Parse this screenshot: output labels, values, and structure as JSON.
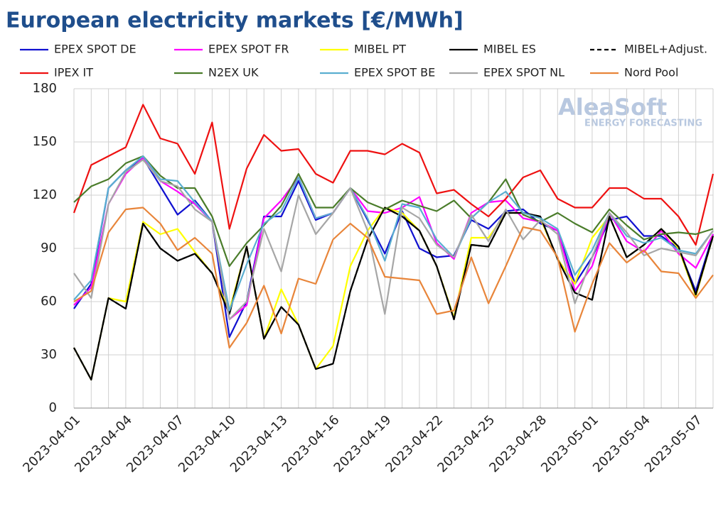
{
  "chart_data": {
    "type": "line",
    "title": "European electricity markets [€/MWh]",
    "watermark": {
      "brand": "AleaSoft",
      "tagline": "ENERGY FORECASTING"
    },
    "categories": [
      "2023-04-01",
      null,
      null,
      "2023-04-04",
      null,
      null,
      "2023-04-07",
      null,
      null,
      "2023-04-10",
      null,
      null,
      "2023-04-13",
      null,
      null,
      "2023-04-16",
      null,
      null,
      "2023-04-19",
      null,
      null,
      "2023-04-22",
      null,
      null,
      "2023-04-25",
      null,
      null,
      "2023-04-28",
      null,
      null,
      "2023-05-01",
      null,
      null,
      "2023-05-04",
      null,
      null,
      "2023-05-07",
      null
    ],
    "ylim": [
      0,
      180
    ],
    "yticks": [
      0,
      30,
      60,
      90,
      120,
      150,
      180
    ],
    "grid": true,
    "series": [
      {
        "name": "EPEX SPOT DE",
        "color": "#1010d0",
        "values": [
          56,
          70,
          124,
          134,
          141,
          125,
          109,
          117,
          105,
          40,
          60,
          108,
          108,
          128,
          106,
          110,
          124,
          106,
          87,
          111,
          90,
          85,
          86,
          106,
          101,
          111,
          112,
          104,
          100,
          70,
          85,
          106,
          108,
          97,
          97,
          90,
          66,
          98
        ]
      },
      {
        "name": "EPEX SPOT FR",
        "color": "#ff00ff",
        "values": [
          58,
          68,
          115,
          132,
          141,
          128,
          122,
          115,
          105,
          50,
          58,
          107,
          117,
          130,
          107,
          110,
          124,
          111,
          110,
          113,
          119,
          93,
          84,
          110,
          116,
          117,
          107,
          105,
          100,
          66,
          80,
          110,
          94,
          88,
          100,
          87,
          79,
          98
        ]
      },
      {
        "name": "MIBEL PT",
        "color": "#ffff00",
        "values": [
          34,
          16,
          62,
          60,
          105,
          98,
          101,
          88,
          76,
          55,
          91,
          39,
          67,
          47,
          22,
          35,
          80,
          100,
          113,
          110,
          100,
          80,
          51,
          96,
          96,
          110,
          110,
          107,
          84,
          70,
          96,
          108,
          85,
          92,
          101,
          90,
          63,
          97
        ]
      },
      {
        "name": "MIBEL ES",
        "color": "#000000",
        "values": [
          34,
          16,
          62,
          56,
          104,
          90,
          83,
          87,
          76,
          53,
          91,
          39,
          57,
          47,
          22,
          25,
          66,
          95,
          113,
          108,
          100,
          80,
          50,
          92,
          91,
          110,
          110,
          108,
          84,
          65,
          61,
          108,
          85,
          92,
          101,
          91,
          64,
          97
        ]
      },
      {
        "name": "MIBEL+Adjust.",
        "color": "#000000",
        "line_style": "dashed",
        "values": [
          34,
          16,
          62,
          56,
          104,
          90,
          83,
          87,
          76,
          53,
          91,
          39,
          57,
          47,
          22,
          25,
          66,
          95,
          113,
          108,
          100,
          80,
          50,
          92,
          91,
          110,
          110,
          108,
          84,
          65,
          61,
          108,
          85,
          92,
          101,
          91,
          64,
          97
        ]
      },
      {
        "name": "IPEX IT",
        "color": "#ee1111",
        "values": [
          110,
          137,
          142,
          147,
          171,
          152,
          149,
          132,
          161,
          101,
          135,
          154,
          145,
          146,
          132,
          127,
          145,
          145,
          143,
          149,
          144,
          121,
          123,
          115,
          108,
          118,
          130,
          134,
          118,
          113,
          113,
          124,
          124,
          118,
          118,
          108,
          92,
          132
        ]
      },
      {
        "name": "N2EX UK",
        "color": "#4a7c2a",
        "values": [
          116,
          125,
          129,
          138,
          142,
          131,
          124,
          124,
          108,
          80,
          93,
          103,
          114,
          132,
          113,
          113,
          124,
          116,
          112,
          117,
          114,
          111,
          117,
          107,
          116,
          129,
          109,
          105,
          110,
          104,
          99,
          112,
          103,
          95,
          98,
          99,
          98,
          101
        ]
      },
      {
        "name": "EPEX SPOT BE",
        "color": "#5aaed0",
        "values": [
          61,
          72,
          124,
          134,
          142,
          129,
          128,
          116,
          105,
          55,
          81,
          104,
          111,
          130,
          107,
          110,
          124,
          107,
          83,
          115,
          113,
          95,
          85,
          107,
          116,
          122,
          110,
          107,
          101,
          75,
          89,
          110,
          97,
          93,
          96,
          89,
          87,
          100
        ]
      },
      {
        "name": "EPEX SPOT NL",
        "color": "#a6a6a6",
        "values": [
          76,
          62,
          115,
          133,
          140,
          128,
          125,
          112,
          105,
          50,
          60,
          101,
          77,
          120,
          98,
          110,
          124,
          100,
          53,
          113,
          107,
          92,
          85,
          109,
          94,
          112,
          95,
          106,
          98,
          59,
          85,
          110,
          99,
          86,
          90,
          88,
          86,
          100
        ]
      },
      {
        "name": "Nord Pool",
        "color": "#e8853a",
        "values": [
          60,
          66,
          99,
          112,
          113,
          104,
          89,
          96,
          87,
          34,
          48,
          69,
          42,
          73,
          70,
          95,
          104,
          96,
          74,
          73,
          72,
          53,
          55,
          85,
          59,
          80,
          102,
          100,
          85,
          43,
          70,
          93,
          82,
          89,
          77,
          76,
          62,
          75
        ]
      }
    ]
  }
}
